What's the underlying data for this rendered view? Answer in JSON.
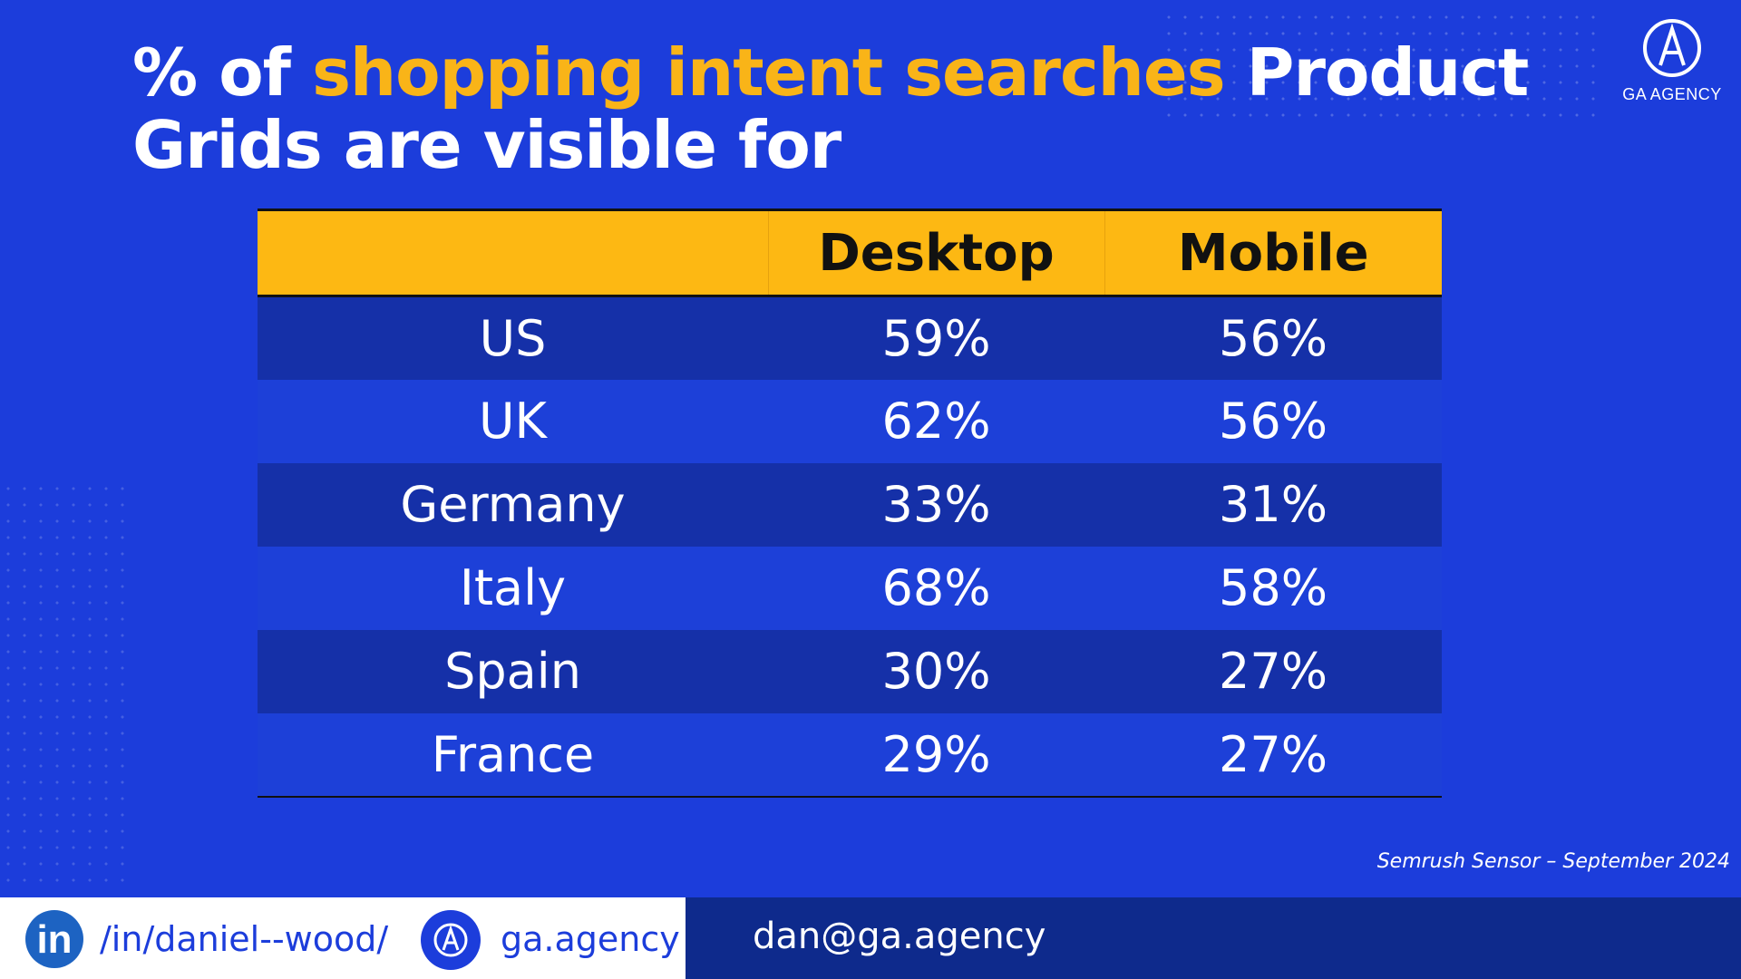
{
  "title": {
    "part1": "% of ",
    "highlight": "shopping intent searches",
    "part2": " Product Grids are visible for"
  },
  "logo": {
    "text": "GA AGENCY"
  },
  "chart_data": {
    "type": "table",
    "columns": [
      "",
      "Desktop",
      "Mobile"
    ],
    "rows": [
      {
        "label": "US",
        "values": [
          "59%",
          "56%"
        ]
      },
      {
        "label": "UK",
        "values": [
          "62%",
          "56%"
        ]
      },
      {
        "label": "Germany",
        "values": [
          "33%",
          "31%"
        ]
      },
      {
        "label": "Italy",
        "values": [
          "68%",
          "58%"
        ]
      },
      {
        "label": "Spain",
        "values": [
          "30%",
          "27%"
        ]
      },
      {
        "label": "France",
        "values": [
          "29%",
          "27%"
        ]
      }
    ]
  },
  "source": "Semrush Sensor – September 2024",
  "footer": {
    "linkedin": "/in/daniel--wood/",
    "website": "ga.agency",
    "email": "dan@ga.agency",
    "linkedin_icon_text": "in"
  },
  "colors": {
    "background": "#1c3ddb",
    "accent": "#f9b418",
    "header_fill": "#fdb813",
    "footer_dark": "#0e2a8c"
  }
}
